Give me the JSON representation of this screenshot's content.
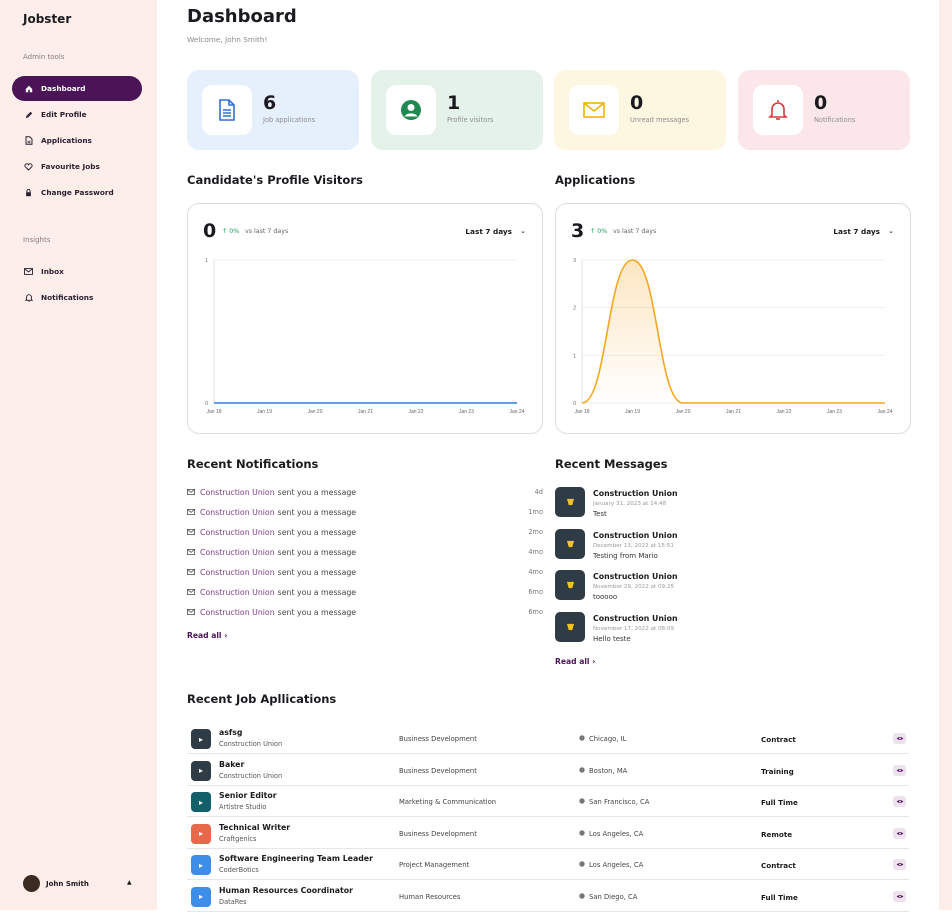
{
  "app": {
    "name": "Jobster"
  },
  "sidebar": {
    "section_admin": "Admin tools",
    "section_insights": "Insights",
    "items": [
      {
        "label": "Dashboard",
        "icon": "home-icon",
        "active": true
      },
      {
        "label": "Edit Profile",
        "icon": "pencil-icon"
      },
      {
        "label": "Applications",
        "icon": "document-icon"
      },
      {
        "label": "Favourite Jobs",
        "icon": "heart-icon"
      },
      {
        "label": "Change Password",
        "icon": "lock-icon"
      },
      {
        "label": "Inbox",
        "icon": "mail-icon"
      },
      {
        "label": "Notifications",
        "icon": "bell-icon"
      }
    ],
    "user": {
      "name": "John Smith"
    }
  },
  "header": {
    "title": "Dashboard",
    "welcome": "Welcome, John Smith!"
  },
  "stats": [
    {
      "value": "6",
      "label": "Job applications",
      "icon": "document-icon",
      "color": "#e6effc"
    },
    {
      "value": "1",
      "label": "Profile visitors",
      "icon": "user-circle-icon",
      "color": "#e5f2ea"
    },
    {
      "value": "0",
      "label": "Unread messages",
      "icon": "envelope-icon",
      "color": "#fdf6e0"
    },
    {
      "value": "0",
      "label": "Notifications",
      "icon": "bell-icon",
      "color": "#fbe7ea"
    }
  ],
  "charts_text": {
    "visitors_title": "Candidate's Profile Visitors",
    "applications_title": "Applications",
    "visitors_value": "0",
    "applications_value": "3",
    "change": "↑ 0%",
    "vs": "vs last 7 days",
    "range": "Last 7 days"
  },
  "chart_data": [
    {
      "type": "line",
      "x": [
        "Jan 18",
        "Jan 19",
        "Jan 20",
        "Jan 21",
        "Jan 22",
        "Jan 23",
        "Jan 24"
      ],
      "series": [
        {
          "values": [
            0,
            0,
            0,
            0,
            0,
            0,
            0
          ]
        }
      ],
      "yticks": [
        "0",
        "1"
      ],
      "ylim": [
        0,
        1
      ],
      "color": "#2f7fe0"
    },
    {
      "type": "area",
      "x": [
        "Jan 18",
        "Jan 19",
        "Jan 20",
        "Jan 21",
        "Jan 22",
        "Jan 23",
        "Jan 24"
      ],
      "series": [
        {
          "values": [
            0,
            3,
            0,
            0,
            0,
            0,
            0
          ]
        }
      ],
      "yticks": [
        "0",
        "1",
        "2",
        "3"
      ],
      "ylim": [
        0,
        3
      ],
      "color": "#f5a623"
    }
  ],
  "notifications": {
    "title": "Recent Notifications",
    "items": [
      {
        "sender": "Construction Union",
        "text": "sent you a message",
        "age": "4d"
      },
      {
        "sender": "Construction Union",
        "text": "sent you a message",
        "age": "1mo"
      },
      {
        "sender": "Construction Union",
        "text": "sent you a message",
        "age": "2mo"
      },
      {
        "sender": "Construction Union",
        "text": "sent you a message",
        "age": "4mo"
      },
      {
        "sender": "Construction Union",
        "text": "sent you a message",
        "age": "4mo"
      },
      {
        "sender": "Construction Union",
        "text": "sent you a message",
        "age": "6mo"
      },
      {
        "sender": "Construction Union",
        "text": "sent you a message",
        "age": "6mo"
      }
    ],
    "read_all": "Read all"
  },
  "messages": {
    "title": "Recent Messages",
    "items": [
      {
        "name": "Construction Union",
        "date": "January 31, 2023 at 14:48",
        "text": "Test"
      },
      {
        "name": "Construction Union",
        "date": "December 13, 2022 at 15:51",
        "text": "Testing from Mario"
      },
      {
        "name": "Construction Union",
        "date": "November 29, 2022 at 09:25",
        "text": "tooooo"
      },
      {
        "name": "Construction Union",
        "date": "November 17, 2022 at 08:09",
        "text": "Hello teste"
      }
    ],
    "read_all": "Read all"
  },
  "jobs": {
    "title": "Recent Job Apllications",
    "rows": [
      {
        "title": "asfsg",
        "company": "Construction Union",
        "dept": "Business Development",
        "location": "Chicago, IL",
        "type": "Contract",
        "logo_color": "#2f3b45"
      },
      {
        "title": "Baker",
        "company": "Construction Union",
        "dept": "Business Development",
        "location": "Boston, MA",
        "type": "Training",
        "logo_color": "#2f3b45"
      },
      {
        "title": "Senior Editor",
        "company": "Artistre Studio",
        "dept": "Marketing & Communication",
        "location": "San Francisco, CA",
        "type": "Full Time",
        "logo_color": "#13606b"
      },
      {
        "title": "Technical Writer",
        "company": "Craftgenics",
        "dept": "Business Development",
        "location": "Los Angeles, CA",
        "type": "Remote",
        "logo_color": "#e8684a"
      },
      {
        "title": "Software Engineering Team Leader",
        "company": "CoderBotics",
        "dept": "Project Management",
        "location": "Los Angeles, CA",
        "type": "Contract",
        "logo_color": "#3d8ee8"
      },
      {
        "title": "Human Resources Coordinator",
        "company": "DataRes",
        "dept": "Human Resources",
        "location": "San Diego, CA",
        "type": "Full Time",
        "logo_color": "#3d8ee8"
      }
    ]
  }
}
